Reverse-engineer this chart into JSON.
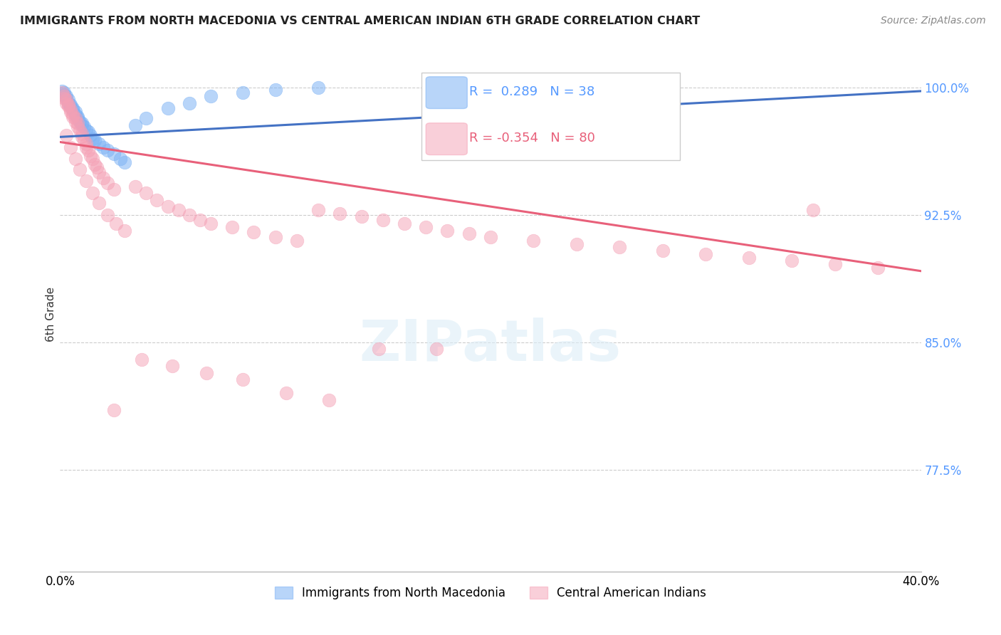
{
  "title": "IMMIGRANTS FROM NORTH MACEDONIA VS CENTRAL AMERICAN INDIAN 6TH GRADE CORRELATION CHART",
  "source": "Source: ZipAtlas.com",
  "ylabel": "6th Grade",
  "xlim": [
    0.0,
    0.4
  ],
  "ylim": [
    0.715,
    1.018
  ],
  "yticks": [
    0.775,
    0.85,
    0.925,
    1.0
  ],
  "ytick_labels": [
    "77.5%",
    "85.0%",
    "92.5%",
    "100.0%"
  ],
  "blue_R": 0.289,
  "blue_N": 38,
  "pink_R": -0.354,
  "pink_N": 80,
  "blue_color": "#7EB3F5",
  "pink_color": "#F5A0B5",
  "blue_line_color": "#4472C4",
  "pink_line_color": "#E8607A",
  "legend_label_blue": "Immigrants from North Macedonia",
  "legend_label_pink": "Central American Indians",
  "blue_line_x0": 0.0,
  "blue_line_y0": 0.971,
  "blue_line_x1": 0.4,
  "blue_line_y1": 0.998,
  "pink_line_x0": 0.0,
  "pink_line_y0": 0.968,
  "pink_line_x1": 0.4,
  "pink_line_y1": 0.892,
  "blue_scatter_x": [
    0.001,
    0.002,
    0.002,
    0.003,
    0.003,
    0.004,
    0.004,
    0.005,
    0.005,
    0.006,
    0.006,
    0.007,
    0.007,
    0.008,
    0.008,
    0.009,
    0.01,
    0.01,
    0.011,
    0.012,
    0.013,
    0.014,
    0.015,
    0.016,
    0.018,
    0.02,
    0.022,
    0.025,
    0.028,
    0.03,
    0.035,
    0.04,
    0.05,
    0.06,
    0.07,
    0.085,
    0.1,
    0.12
  ],
  "blue_scatter_y": [
    0.998,
    0.997,
    0.996,
    0.995,
    0.994,
    0.993,
    0.991,
    0.99,
    0.989,
    0.988,
    0.987,
    0.986,
    0.984,
    0.983,
    0.982,
    0.98,
    0.979,
    0.978,
    0.977,
    0.975,
    0.974,
    0.972,
    0.97,
    0.969,
    0.967,
    0.965,
    0.963,
    0.961,
    0.958,
    0.956,
    0.978,
    0.982,
    0.988,
    0.991,
    0.995,
    0.997,
    0.999,
    1.0
  ],
  "pink_scatter_x": [
    0.001,
    0.002,
    0.002,
    0.003,
    0.003,
    0.004,
    0.004,
    0.005,
    0.005,
    0.006,
    0.006,
    0.007,
    0.007,
    0.008,
    0.008,
    0.009,
    0.01,
    0.01,
    0.011,
    0.012,
    0.012,
    0.013,
    0.014,
    0.015,
    0.016,
    0.017,
    0.018,
    0.02,
    0.022,
    0.025,
    0.003,
    0.005,
    0.007,
    0.009,
    0.012,
    0.015,
    0.018,
    0.022,
    0.026,
    0.03,
    0.035,
    0.04,
    0.045,
    0.05,
    0.055,
    0.06,
    0.065,
    0.07,
    0.08,
    0.09,
    0.1,
    0.11,
    0.12,
    0.13,
    0.14,
    0.15,
    0.16,
    0.17,
    0.18,
    0.19,
    0.2,
    0.22,
    0.24,
    0.26,
    0.28,
    0.3,
    0.32,
    0.34,
    0.36,
    0.38,
    0.025,
    0.038,
    0.052,
    0.068,
    0.085,
    0.105,
    0.125,
    0.148,
    0.175,
    0.35
  ],
  "pink_scatter_y": [
    0.997,
    0.995,
    0.994,
    0.993,
    0.991,
    0.99,
    0.989,
    0.987,
    0.986,
    0.984,
    0.983,
    0.982,
    0.98,
    0.979,
    0.977,
    0.975,
    0.973,
    0.971,
    0.969,
    0.967,
    0.965,
    0.963,
    0.96,
    0.958,
    0.955,
    0.953,
    0.95,
    0.947,
    0.944,
    0.94,
    0.972,
    0.965,
    0.958,
    0.952,
    0.945,
    0.938,
    0.932,
    0.925,
    0.92,
    0.916,
    0.942,
    0.938,
    0.934,
    0.93,
    0.928,
    0.925,
    0.922,
    0.92,
    0.918,
    0.915,
    0.912,
    0.91,
    0.928,
    0.926,
    0.924,
    0.922,
    0.92,
    0.918,
    0.916,
    0.914,
    0.912,
    0.91,
    0.908,
    0.906,
    0.904,
    0.902,
    0.9,
    0.898,
    0.896,
    0.894,
    0.81,
    0.84,
    0.836,
    0.832,
    0.828,
    0.82,
    0.816,
    0.846,
    0.846,
    0.928
  ]
}
